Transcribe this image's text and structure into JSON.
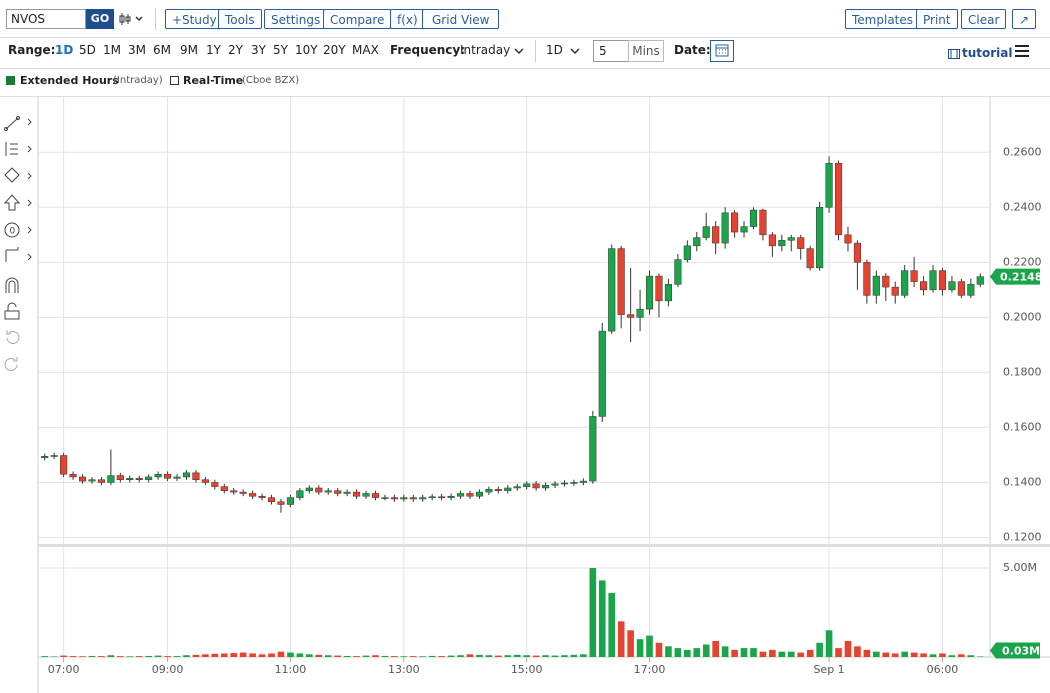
{
  "toolbar": {
    "symbol": "NVOS",
    "go": "GO",
    "buttons": [
      "+Study",
      "Tools",
      "Settings",
      "Compare",
      "f(x)",
      "Grid View"
    ],
    "right_buttons": [
      "Templates",
      "Print",
      "Clear"
    ],
    "range_label": "Range:",
    "ranges": [
      "1D",
      "5D",
      "1M",
      "3M",
      "6M",
      "9M",
      "1Y",
      "2Y",
      "3Y",
      "5Y",
      "10Y",
      "20Y",
      "MAX"
    ],
    "frequency_label": "Frequency:",
    "frequency": "Intraday",
    "period": "1D",
    "interval": "5",
    "interval_unit": "Mins",
    "date_label": "Date:",
    "tutorial": "tutorial"
  },
  "legend": {
    "extended": "Extended Hours",
    "extended_note": "(Intraday)",
    "realtime": "Real-Time",
    "realtime_note": "(Cboe BZX)"
  },
  "chart_data": {
    "type": "candlestick",
    "up_color": "#1aa54a",
    "down_color": "#e5432f",
    "grid": true,
    "categories": [
      null,
      null,
      "07:00",
      null,
      null,
      null,
      null,
      null,
      null,
      null,
      null,
      null,
      null,
      "09:00",
      null,
      null,
      null,
      null,
      null,
      null,
      null,
      null,
      null,
      null,
      null,
      null,
      "11:00",
      null,
      null,
      null,
      null,
      null,
      null,
      null,
      null,
      null,
      null,
      null,
      "13:00",
      null,
      null,
      null,
      null,
      null,
      null,
      null,
      null,
      null,
      null,
      null,
      null,
      "15:00",
      null,
      null,
      null,
      null,
      null,
      null,
      null,
      null,
      null,
      null,
      null,
      null,
      "17:00",
      null,
      null,
      null,
      null,
      null,
      null,
      null,
      null,
      null,
      null,
      null,
      null,
      null,
      null,
      null,
      null,
      null,
      null,
      "Sep 1",
      null,
      null,
      null,
      null,
      null,
      null,
      null,
      null,
      null,
      null,
      null,
      "06:00",
      null,
      null,
      null,
      null
    ],
    "open": [
      0.149,
      0.1495,
      0.1498,
      0.143,
      0.142,
      0.1405,
      0.141,
      0.14,
      0.1425,
      0.141,
      0.1415,
      0.141,
      0.142,
      0.143,
      0.1415,
      0.142,
      0.1435,
      0.141,
      0.14,
      0.1385,
      0.137,
      0.1365,
      0.136,
      0.135,
      0.1345,
      0.133,
      0.132,
      0.1345,
      0.137,
      0.138,
      0.1365,
      0.137,
      0.136,
      0.1365,
      0.135,
      0.136,
      0.1345,
      0.1345,
      0.134,
      0.1345,
      0.134,
      0.1345,
      0.1348,
      0.1345,
      0.135,
      0.136,
      0.135,
      0.1365,
      0.1375,
      0.137,
      0.138,
      0.1385,
      0.1395,
      0.138,
      0.139,
      0.1395,
      0.1398,
      0.14,
      0.1405,
      0.164,
      0.195,
      0.225,
      0.201,
      0.2,
      0.203,
      0.215,
      0.206,
      0.212,
      0.221,
      0.226,
      0.229,
      0.233,
      0.227,
      0.238,
      0.231,
      0.233,
      0.239,
      0.23,
      0.226,
      0.228,
      0.229,
      0.225,
      0.218,
      0.24,
      0.256,
      0.23,
      0.227,
      0.22,
      0.208,
      0.215,
      0.211,
      0.208,
      0.217,
      0.213,
      0.21,
      0.217,
      0.21,
      0.213,
      0.208,
      0.212
    ],
    "high": [
      0.1505,
      0.1508,
      0.1508,
      0.144,
      0.143,
      0.142,
      0.142,
      0.152,
      0.1435,
      0.1425,
      0.1425,
      0.143,
      0.144,
      0.144,
      0.143,
      0.1445,
      0.1445,
      0.142,
      0.141,
      0.1395,
      0.138,
      0.1375,
      0.137,
      0.136,
      0.1355,
      0.134,
      0.1355,
      0.138,
      0.139,
      0.139,
      0.138,
      0.138,
      0.1375,
      0.1375,
      0.137,
      0.137,
      0.1355,
      0.1355,
      0.1355,
      0.1355,
      0.1355,
      0.1358,
      0.1358,
      0.136,
      0.137,
      0.137,
      0.1375,
      0.1385,
      0.1385,
      0.139,
      0.1395,
      0.1405,
      0.1405,
      0.14,
      0.1405,
      0.1408,
      0.141,
      0.1415,
      0.166,
      0.198,
      0.2265,
      0.226,
      0.218,
      0.21,
      0.217,
      0.216,
      0.214,
      0.223,
      0.228,
      0.231,
      0.238,
      0.235,
      0.24,
      0.239,
      0.235,
      0.24,
      0.2395,
      0.231,
      0.23,
      0.23,
      0.23,
      0.226,
      0.242,
      0.2585,
      0.257,
      0.233,
      0.228,
      0.221,
      0.217,
      0.216,
      0.213,
      0.219,
      0.222,
      0.215,
      0.219,
      0.218,
      0.215,
      0.214,
      0.214,
      0.216
    ],
    "low": [
      0.148,
      0.1485,
      0.142,
      0.141,
      0.1395,
      0.1395,
      0.139,
      0.139,
      0.14,
      0.14,
      0.14,
      0.14,
      0.141,
      0.1405,
      0.1405,
      0.141,
      0.14,
      0.139,
      0.1375,
      0.136,
      0.1355,
      0.135,
      0.134,
      0.1335,
      0.132,
      0.129,
      0.131,
      0.1335,
      0.136,
      0.1355,
      0.1355,
      0.135,
      0.135,
      0.134,
      0.134,
      0.1335,
      0.1335,
      0.133,
      0.133,
      0.133,
      0.133,
      0.1335,
      0.1335,
      0.1335,
      0.134,
      0.134,
      0.134,
      0.1355,
      0.136,
      0.136,
      0.137,
      0.1375,
      0.137,
      0.137,
      0.138,
      0.1385,
      0.1388,
      0.139,
      0.1395,
      0.162,
      0.194,
      0.196,
      0.191,
      0.195,
      0.201,
      0.2,
      0.204,
      0.211,
      0.22,
      0.224,
      0.228,
      0.223,
      0.225,
      0.229,
      0.229,
      0.232,
      0.228,
      0.222,
      0.224,
      0.224,
      0.221,
      0.217,
      0.217,
      0.238,
      0.228,
      0.224,
      0.21,
      0.205,
      0.205,
      0.206,
      0.205,
      0.207,
      0.211,
      0.208,
      0.209,
      0.208,
      0.209,
      0.207,
      0.207,
      0.211
    ],
    "close": [
      0.1495,
      0.1498,
      0.143,
      0.142,
      0.1405,
      0.141,
      0.14,
      0.1425,
      0.141,
      0.1415,
      0.141,
      0.142,
      0.143,
      0.1415,
      0.142,
      0.1435,
      0.141,
      0.14,
      0.1385,
      0.137,
      0.1365,
      0.136,
      0.135,
      0.1345,
      0.133,
      0.132,
      0.1345,
      0.137,
      0.138,
      0.1365,
      0.137,
      0.136,
      0.1365,
      0.135,
      0.136,
      0.1345,
      0.1345,
      0.134,
      0.1345,
      0.134,
      0.1345,
      0.1348,
      0.1345,
      0.135,
      0.136,
      0.135,
      0.1365,
      0.1375,
      0.137,
      0.138,
      0.1385,
      0.1395,
      0.138,
      0.139,
      0.1395,
      0.1398,
      0.14,
      0.1405,
      0.164,
      0.195,
      0.225,
      0.201,
      0.2,
      0.203,
      0.215,
      0.206,
      0.212,
      0.221,
      0.226,
      0.229,
      0.233,
      0.227,
      0.238,
      0.231,
      0.233,
      0.239,
      0.23,
      0.226,
      0.228,
      0.229,
      0.225,
      0.218,
      0.24,
      0.256,
      0.23,
      0.227,
      0.22,
      0.208,
      0.215,
      0.211,
      0.208,
      0.217,
      0.213,
      0.21,
      0.217,
      0.21,
      0.213,
      0.208,
      0.212,
      0.2148
    ],
    "ylim": [
      0.118,
      0.279
    ],
    "yticks": [
      {
        "value": 0.12,
        "label": "0.1200"
      },
      {
        "value": 0.14,
        "label": "0.1400"
      },
      {
        "value": 0.16,
        "label": "0.1600"
      },
      {
        "value": 0.18,
        "label": "0.1800"
      },
      {
        "value": 0.2,
        "label": "0.2000"
      },
      {
        "value": 0.22,
        "label": "0.2200"
      },
      {
        "value": 0.24,
        "label": "0.2400"
      },
      {
        "value": 0.26,
        "label": "0.2600"
      }
    ],
    "volume": {
      "values": [
        0.05,
        0.03,
        0.08,
        0.05,
        0.04,
        0.06,
        0.05,
        0.1,
        0.05,
        0.04,
        0.05,
        0.06,
        0.08,
        0.05,
        0.05,
        0.1,
        0.12,
        0.15,
        0.18,
        0.2,
        0.22,
        0.25,
        0.2,
        0.15,
        0.2,
        0.3,
        0.25,
        0.2,
        0.15,
        0.12,
        0.1,
        0.08,
        0.06,
        0.05,
        0.08,
        0.1,
        0.06,
        0.05,
        0.04,
        0.05,
        0.04,
        0.06,
        0.05,
        0.08,
        0.1,
        0.15,
        0.12,
        0.1,
        0.08,
        0.1,
        0.12,
        0.1,
        0.08,
        0.1,
        0.08,
        0.1,
        0.12,
        0.15,
        5.0,
        4.3,
        3.6,
        2.0,
        1.5,
        1.0,
        1.2,
        0.8,
        0.6,
        0.5,
        0.4,
        0.5,
        0.7,
        0.9,
        0.6,
        0.4,
        0.5,
        0.5,
        0.3,
        0.4,
        0.3,
        0.3,
        0.25,
        0.4,
        0.8,
        1.5,
        0.5,
        0.9,
        0.6,
        0.4,
        0.3,
        0.25,
        0.2,
        0.3,
        0.25,
        0.2,
        0.15,
        0.2,
        0.1,
        0.15,
        0.1,
        0.03
      ],
      "last_value_label": "0.03M",
      "ylim": [
        0,
        6.12
      ],
      "yticks": [
        {
          "value": 5,
          "label": "5.00M"
        }
      ]
    }
  }
}
